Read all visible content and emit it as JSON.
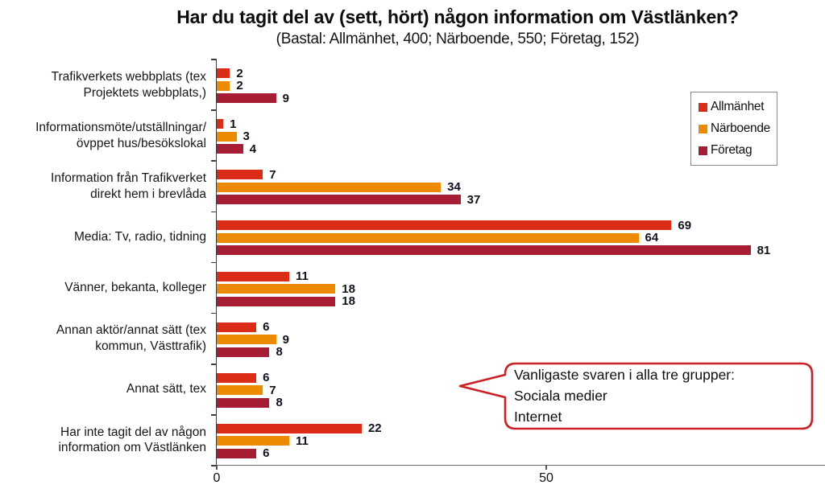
{
  "title": "Har du tagit del av (sett, hört) någon information om Västlänken?",
  "subtitle": "(Bastal: Allmänhet, 400; Närboende, 550; Företag, 152)",
  "chart_data": {
    "type": "bar",
    "orientation": "horizontal",
    "title": "Har du tagit del av (sett, hört) någon information om Västlänken?",
    "subtitle": "(Bastal: Allmänhet, 400; Närboende, 550; Företag, 152)",
    "categories": [
      "Trafikverkets webbplats (tex\nProjektets webbplats,)",
      "Informationsmöte/utställningar/\növppet hus/besökslokal",
      "Information från Trafikverket\ndirekt hem i brevlåda",
      "Media: Tv, radio, tidning",
      "Vänner, bekanta, kolleger",
      "Annan aktör/annat sätt (tex\nkommun, Västtrafik)",
      "Annat sätt, tex",
      "Har inte tagit del av någon\ninformation om Västlänken"
    ],
    "series": [
      {
        "name": "Allmänhet",
        "color": "#DA2C17",
        "values": [
          2,
          1,
          7,
          69,
          11,
          6,
          6,
          22
        ]
      },
      {
        "name": "Närboende",
        "color": "#EC8A02",
        "values": [
          2,
          3,
          34,
          64,
          18,
          9,
          7,
          11
        ]
      },
      {
        "name": "Företag",
        "color": "#A71D33",
        "values": [
          9,
          4,
          37,
          81,
          18,
          8,
          8,
          6
        ]
      }
    ],
    "value_labels": true,
    "x_axis": {
      "ticks": [
        0,
        50
      ],
      "range": [
        0,
        92
      ],
      "grid": false
    },
    "legend_position": "top-right"
  },
  "annotation": {
    "text": "Vanligaste svaren i alla tre grupper:\nSociala medier\nInternet",
    "border_color": "#CC2024"
  }
}
